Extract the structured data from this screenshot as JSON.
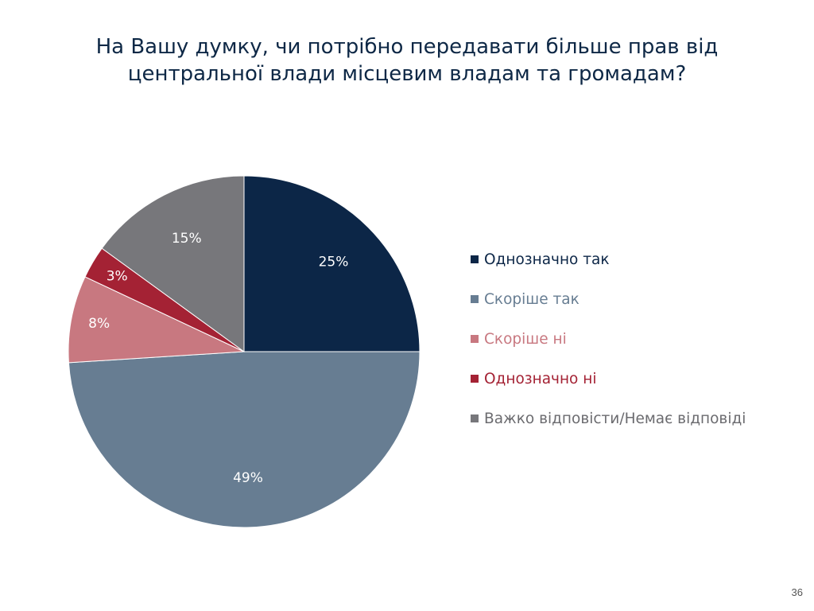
{
  "slide": {
    "title_line1": "На Вашу думку, чи потрібно передавати більше прав від",
    "title_line2": "центральної влади місцевим владам та громадам?",
    "page_number": "36"
  },
  "chart_data": {
    "type": "pie",
    "title": "На Вашу думку, чи потрібно передавати більше прав від центральної влади місцевим владам та громадам?",
    "legend_position": "right",
    "slices": [
      {
        "label": "Однозначно так",
        "value": 25,
        "display": "25%",
        "color": "#0c2647",
        "legend_text_color": "#0c2647"
      },
      {
        "label": "Скоріше так",
        "value": 49,
        "display": "49%",
        "color": "#677d92",
        "legend_text_color": "#677d92"
      },
      {
        "label": "Скоріше ні",
        "value": 8,
        "display": "8%",
        "color": "#c87880",
        "legend_text_color": "#c87880"
      },
      {
        "label": "Однозначно ні",
        "value": 3,
        "display": "3%",
        "color": "#a42234",
        "legend_text_color": "#a42234"
      },
      {
        "label": "Важко відповісти/Немає відповіді",
        "value": 15,
        "display": "15%",
        "color": "#77777b",
        "legend_text_color": "#6b6b6f"
      }
    ]
  }
}
